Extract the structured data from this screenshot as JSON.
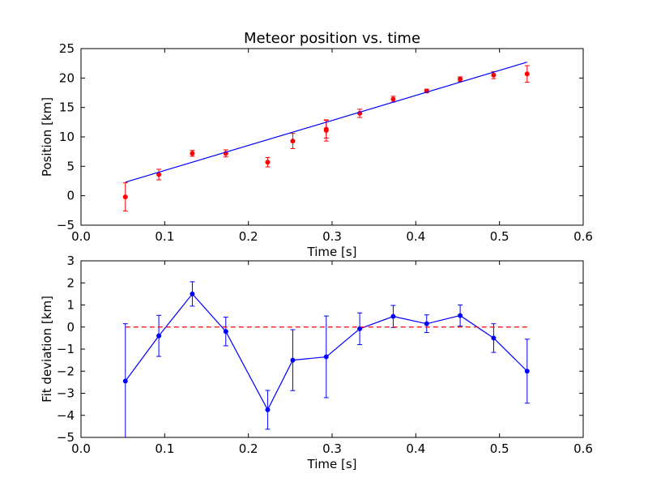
{
  "figure_title": "Meteor position vs. time",
  "chart_data": [
    {
      "type": "scatter",
      "title": "Meteor position vs. time",
      "xlabel": "Time [s]",
      "ylabel": "Position [km]",
      "xlim": [
        0.0,
        0.6
      ],
      "ylim": [
        -5,
        25
      ],
      "xticks": [
        "0.0",
        "0.1",
        "0.2",
        "0.3",
        "0.4",
        "0.5",
        "0.6"
      ],
      "yticks": [
        "−5",
        "0",
        "5",
        "10",
        "15",
        "20",
        "25"
      ],
      "grid": false,
      "series": [
        {
          "kind": "errorbar-points",
          "color": "#ff0000",
          "x": [
            0.053,
            0.093,
            0.133,
            0.173,
            0.223,
            0.253,
            0.293,
            0.293,
            0.333,
            0.373,
            0.413,
            0.453,
            0.493,
            0.533
          ],
          "y": [
            -0.2,
            3.6,
            7.2,
            7.2,
            5.7,
            9.3,
            11.3,
            11.1,
            14.0,
            16.4,
            17.8,
            19.8,
            20.5,
            20.7
          ],
          "yerr": [
            2.4,
            0.9,
            0.5,
            0.6,
            0.8,
            1.3,
            1.5,
            1.8,
            0.7,
            0.5,
            0.3,
            0.4,
            0.6,
            1.4
          ]
        },
        {
          "kind": "fit-line",
          "color": "#0000ff",
          "x": [
            0.053,
            0.533
          ],
          "y": [
            2.3,
            22.7
          ]
        }
      ]
    },
    {
      "type": "line",
      "xlabel": "Time [s]",
      "ylabel": "Fit deviation [km]",
      "xlim": [
        0.0,
        0.6
      ],
      "ylim": [
        -5,
        3
      ],
      "xticks": [
        "0.0",
        "0.1",
        "0.2",
        "0.3",
        "0.4",
        "0.5",
        "0.6"
      ],
      "yticks": [
        "−5",
        "−4",
        "−3",
        "−2",
        "−1",
        "0",
        "1",
        "2",
        "3"
      ],
      "grid": false,
      "series": [
        {
          "kind": "errorbar-line",
          "color": "#0000ff",
          "x": [
            0.053,
            0.093,
            0.133,
            0.173,
            0.223,
            0.253,
            0.293,
            0.333,
            0.373,
            0.413,
            0.453,
            0.493,
            0.533
          ],
          "y": [
            -2.45,
            -0.4,
            1.5,
            -0.2,
            -3.75,
            -1.5,
            -1.35,
            -0.08,
            0.48,
            0.15,
            0.52,
            -0.5,
            -2.0
          ],
          "yerr": [
            2.6,
            0.93,
            0.55,
            0.65,
            0.88,
            1.38,
            1.85,
            0.72,
            0.5,
            0.4,
            0.48,
            0.65,
            1.45
          ]
        },
        {
          "kind": "zero-line",
          "color": "#ff0000",
          "dashed": true,
          "x": [
            0.053,
            0.533
          ],
          "y": [
            0,
            0
          ]
        }
      ]
    }
  ]
}
